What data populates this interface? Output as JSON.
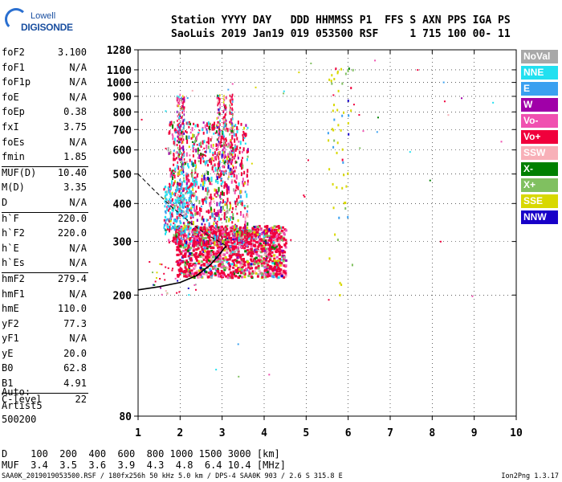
{
  "logo": {
    "line1": "Lowell",
    "line2": "DIGISONDE"
  },
  "header": {
    "line1": "Station YYYY DAY   DDD HHMMSS P1  FFS S AXN PPS IGA PS",
    "line2": "SaoLuis 2019 Jan19 019 053500 RSF     1 715 100 00- 11"
  },
  "params": [
    {
      "k": "foF2",
      "v": "3.100"
    },
    {
      "k": "foF1",
      "v": "N/A"
    },
    {
      "k": "foF1p",
      "v": "N/A"
    },
    {
      "k": "foE",
      "v": "N/A"
    },
    {
      "k": "foEp",
      "v": "0.38"
    },
    {
      "k": "fxI",
      "v": "3.75"
    },
    {
      "k": "foEs",
      "v": "N/A"
    },
    {
      "k": "fmin",
      "v": "1.85"
    },
    {
      "k": "MUF(D)",
      "v": "10.40",
      "sep": true
    },
    {
      "k": "M(D)",
      "v": "3.35"
    },
    {
      "k": "D",
      "v": "N/A"
    },
    {
      "k": "h`F",
      "v": "220.0",
      "sep": true
    },
    {
      "k": "h`F2",
      "v": "220.0"
    },
    {
      "k": "h`E",
      "v": "N/A"
    },
    {
      "k": "h`Es",
      "v": "N/A"
    },
    {
      "k": "hmF2",
      "v": "279.4",
      "sep": true
    },
    {
      "k": "hmF1",
      "v": "N/A"
    },
    {
      "k": "hmE",
      "v": "110.0"
    },
    {
      "k": "yF2",
      "v": "77.3"
    },
    {
      "k": "yF1",
      "v": "N/A"
    },
    {
      "k": "yE",
      "v": "20.0"
    },
    {
      "k": "B0",
      "v": "62.8"
    },
    {
      "k": "B1",
      "v": "4.91"
    },
    {
      "k": "C-level",
      "v": "22",
      "sep": true
    }
  ],
  "auto": {
    "l1": "Auto:",
    "l2": "Artist5",
    "l3": "500200"
  },
  "muf_table": {
    "d_row": "D    100  200  400  600  800 1000 1500 3000 [km]",
    "muf_row": "MUF  3.4  3.5  3.6  3.9  4.3  4.8  6.4 10.4 [MHz]"
  },
  "footer": {
    "left": "SAA0K_2019019053500.RSF / 180fx256h 50 kHz 5.0 km / DPS-4 SAA0K 903 / 2.6 S 315.8 E",
    "right": "Ion2Png 1.3.17"
  },
  "legend": [
    {
      "label": "NoVal",
      "color": "#a8a8a8"
    },
    {
      "label": "NNE",
      "color": "#22e0f0"
    },
    {
      "label": "E",
      "color": "#3aa0f0"
    },
    {
      "label": "W",
      "color": "#a000a8"
    },
    {
      "label": "Vo-",
      "color": "#f050b0"
    },
    {
      "label": "Vo+",
      "color": "#f0003c"
    },
    {
      "label": "SSW",
      "color": "#f8b0b8"
    },
    {
      "label": "X-",
      "color": "#008000"
    },
    {
      "label": "X+",
      "color": "#80c060"
    },
    {
      "label": "SSE",
      "color": "#d8d800"
    },
    {
      "label": "NNW",
      "color": "#1800c8"
    }
  ],
  "chart_data": {
    "type": "scatter",
    "xlabel": "",
    "ylabel": "",
    "xlim": [
      1,
      10
    ],
    "ylim": [
      80,
      1280
    ],
    "x_ticks": [
      1,
      2,
      3,
      4,
      5,
      6,
      7,
      8,
      9,
      10
    ],
    "y_ticks": [
      80,
      200,
      300,
      400,
      500,
      600,
      700,
      800,
      900,
      1000,
      1100,
      1280
    ],
    "scale": "log-height",
    "trace": {
      "name": "",
      "points": [
        [
          1,
          208
        ],
        [
          1.5,
          213
        ],
        [
          2,
          220
        ],
        [
          2.4,
          232
        ],
        [
          2.7,
          250
        ],
        [
          2.9,
          268
        ],
        [
          3.05,
          285
        ],
        [
          3.1,
          290
        ]
      ]
    },
    "dashed_profile": {
      "points": [
        [
          1,
          500
        ],
        [
          1.4,
          440
        ],
        [
          1.8,
          390
        ],
        [
          2.2,
          350
        ],
        [
          2.6,
          318
        ],
        [
          3.0,
          296
        ],
        [
          3.1,
          290
        ]
      ]
    }
  }
}
